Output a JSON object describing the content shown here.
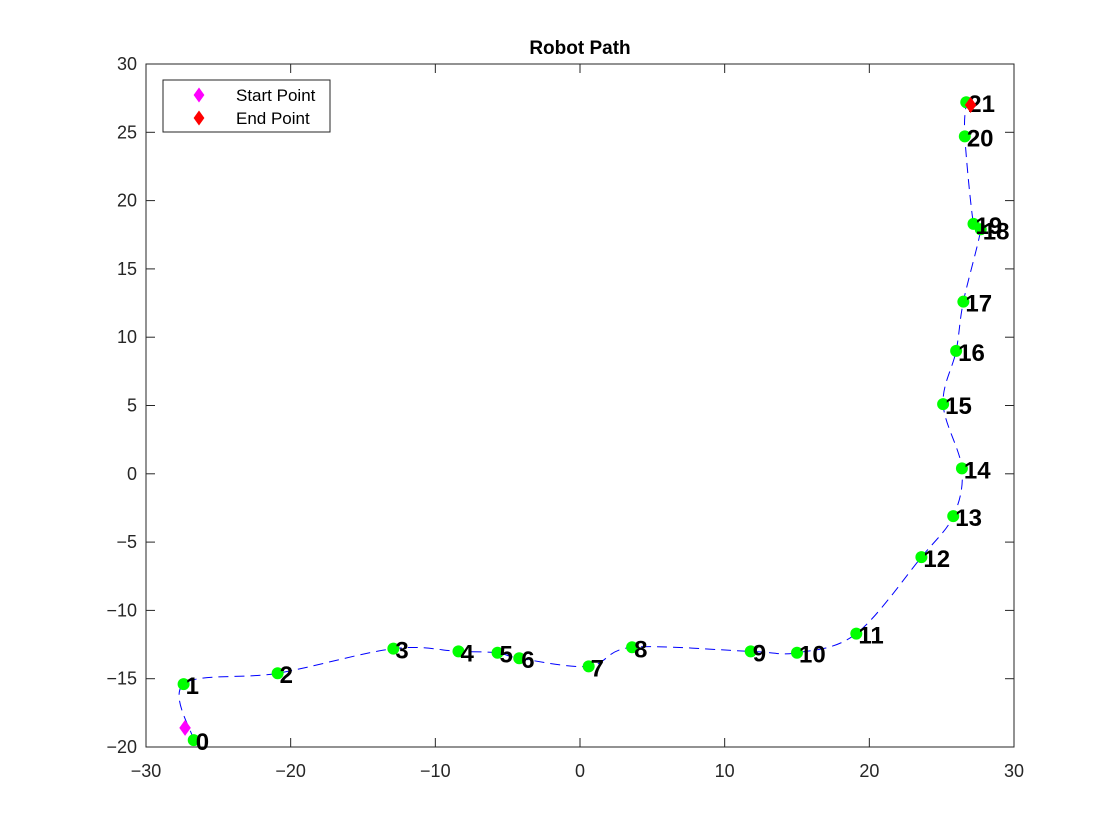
{
  "chart_data": {
    "type": "scatter",
    "title": "Robot Path",
    "xlabel": "",
    "ylabel": "",
    "xlim": [
      -30,
      30
    ],
    "ylim": [
      -20,
      30
    ],
    "xticks": [
      -30,
      -20,
      -10,
      0,
      10,
      20,
      30
    ],
    "yticks": [
      -20,
      -15,
      -10,
      -5,
      0,
      5,
      10,
      15,
      20,
      25,
      30
    ],
    "grid": false,
    "legend_position": "top-left",
    "waypoints": [
      {
        "label": "0",
        "x": -26.7,
        "y": -19.5
      },
      {
        "label": "1",
        "x": -27.4,
        "y": -15.4
      },
      {
        "label": "2",
        "x": -20.9,
        "y": -14.6
      },
      {
        "label": "3",
        "x": -12.9,
        "y": -12.8
      },
      {
        "label": "4",
        "x": -8.4,
        "y": -13.0
      },
      {
        "label": "5",
        "x": -5.7,
        "y": -13.1
      },
      {
        "label": "6",
        "x": -4.2,
        "y": -13.5
      },
      {
        "label": "7",
        "x": 0.6,
        "y": -14.1
      },
      {
        "label": "8",
        "x": 3.6,
        "y": -12.7
      },
      {
        "label": "9",
        "x": 11.8,
        "y": -13.0
      },
      {
        "label": "10",
        "x": 15.0,
        "y": -13.1
      },
      {
        "label": "11",
        "x": 19.1,
        "y": -11.7
      },
      {
        "label": "12",
        "x": 23.6,
        "y": -6.1
      },
      {
        "label": "13",
        "x": 25.8,
        "y": -3.1
      },
      {
        "label": "14",
        "x": 26.4,
        "y": 0.4
      },
      {
        "label": "15",
        "x": 25.1,
        "y": 5.1
      },
      {
        "label": "16",
        "x": 26.0,
        "y": 9.0
      },
      {
        "label": "17",
        "x": 26.5,
        "y": 12.6
      },
      {
        "label": "18",
        "x": 27.7,
        "y": 17.9
      },
      {
        "label": "19",
        "x": 27.2,
        "y": 18.3
      },
      {
        "label": "20",
        "x": 26.6,
        "y": 24.7
      },
      {
        "label": "21",
        "x": 26.7,
        "y": 27.2
      }
    ],
    "start_point": {
      "x": -27.3,
      "y": -18.6
    },
    "end_point": {
      "x": 27.0,
      "y": 27.0
    },
    "legend": [
      {
        "name": "Start Point",
        "color": "#ff00ff",
        "marker": "diamond"
      },
      {
        "name": "End Point",
        "color": "#ff0000",
        "marker": "diamond"
      }
    ],
    "colors": {
      "waypoint": "#00ff00",
      "path": "#0000ff",
      "start": "#ff00ff",
      "end": "#ff0000",
      "axes": "#262626"
    }
  }
}
